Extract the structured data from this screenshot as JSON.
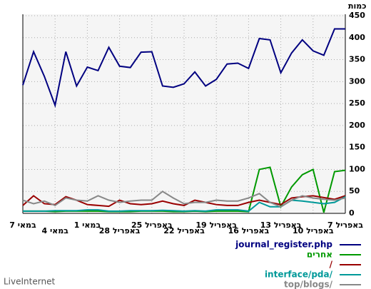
{
  "chart_data": {
    "type": "line",
    "y_label": "כמות",
    "footer": "LiveInternet",
    "categories": [
      "7 במאי",
      null,
      null,
      "4 במאי",
      null,
      null,
      "1 במאי",
      null,
      null,
      "28 באפריל",
      null,
      null,
      "25 באפריל",
      null,
      null,
      "22 באפריל",
      null,
      null,
      "19 באפריל",
      null,
      null,
      "16 באפריל",
      null,
      null,
      "13 באפריל",
      null,
      null,
      "10 באפריל",
      null,
      null,
      "7 באפריל"
    ],
    "ylim": [
      0,
      450
    ],
    "yticks": [
      0,
      50,
      100,
      150,
      200,
      250,
      300,
      350,
      400,
      450
    ],
    "grid": true,
    "series": [
      {
        "name": "journal_register.php",
        "color": "#000080",
        "values": [
          292,
          368,
          312,
          246,
          368,
          290,
          333,
          325,
          378,
          335,
          332,
          367,
          368,
          290,
          287,
          295,
          322,
          290,
          305,
          340,
          342,
          330,
          398,
          395,
          320,
          365,
          395,
          370,
          360,
          420,
          420
        ]
      },
      {
        "name": "אחרים",
        "color": "#009900",
        "values": [
          5,
          5,
          5,
          4,
          5,
          5,
          5,
          5,
          4,
          4,
          4,
          5,
          5,
          5,
          4,
          4,
          5,
          4,
          5,
          5,
          5,
          4,
          100,
          105,
          15,
          60,
          88,
          100,
          2,
          95,
          98
        ]
      },
      {
        "name": "/",
        "color": "#990000",
        "values": [
          18,
          40,
          22,
          20,
          38,
          30,
          20,
          18,
          16,
          30,
          22,
          20,
          22,
          28,
          22,
          18,
          30,
          25,
          20,
          18,
          18,
          25,
          30,
          25,
          20,
          35,
          38,
          40,
          36,
          32,
          40
        ]
      },
      {
        "name": "interface/pda/",
        "color": "#009999",
        "values": [
          5,
          5,
          5,
          6,
          6,
          6,
          8,
          8,
          5,
          5,
          6,
          6,
          6,
          7,
          6,
          5,
          6,
          5,
          8,
          8,
          8,
          5,
          25,
          15,
          15,
          30,
          28,
          25,
          22,
          25,
          38
        ]
      },
      {
        "name": "top/blogs/",
        "color": "#888888",
        "values": [
          30,
          22,
          28,
          18,
          35,
          30,
          28,
          40,
          30,
          25,
          28,
          30,
          30,
          50,
          35,
          22,
          25,
          25,
          30,
          28,
          28,
          35,
          45,
          25,
          15,
          30,
          40,
          35,
          32,
          30,
          35
        ]
      }
    ]
  }
}
